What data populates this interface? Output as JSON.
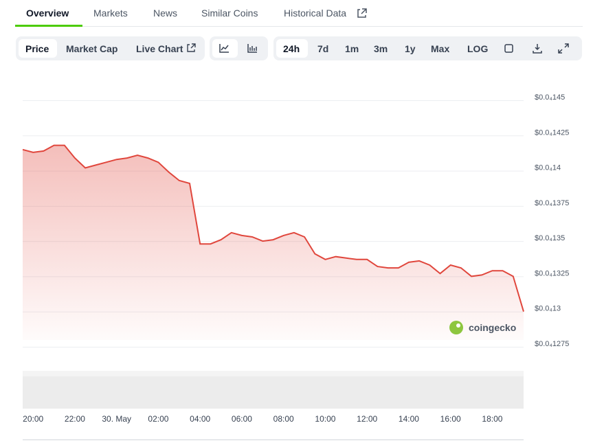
{
  "tabs": [
    "Overview",
    "Markets",
    "News",
    "Similar Coins",
    "Historical Data"
  ],
  "toolbar": {
    "views": [
      "Price",
      "Market Cap",
      "Live Chart"
    ],
    "ranges": [
      "24h",
      "7d",
      "1m",
      "3m",
      "1y",
      "Max",
      "LOG"
    ]
  },
  "watermark": "coingecko",
  "chart_data": {
    "type": "area",
    "color": "#e0463c",
    "categories": [
      null,
      "20:00",
      null,
      null,
      null,
      "22:00",
      null,
      null,
      null,
      "30. May",
      null,
      null,
      null,
      "02:00",
      null,
      null,
      null,
      "04:00",
      null,
      null,
      null,
      "06:00",
      null,
      null,
      null,
      "08:00",
      null,
      null,
      null,
      "10:00",
      null,
      null,
      null,
      "12:00",
      null,
      null,
      null,
      "14:00",
      null,
      null,
      null,
      "16:00",
      null,
      null,
      null,
      "18:00",
      null,
      null,
      null
    ],
    "series": [
      {
        "name": "Price",
        "color": "#e0463c",
        "values": [
          1.415e-05,
          1.413e-05,
          1.414e-05,
          1.418e-05,
          1.418e-05,
          1.409e-05,
          1.402e-05,
          1.404e-05,
          1.406e-05,
          1.408e-05,
          1.409e-05,
          1.411e-05,
          1.409e-05,
          1.406e-05,
          1.399e-05,
          1.393e-05,
          1.391e-05,
          1.348e-05,
          1.348e-05,
          1.351e-05,
          1.356e-05,
          1.354e-05,
          1.353e-05,
          1.35e-05,
          1.351e-05,
          1.354e-05,
          1.356e-05,
          1.353e-05,
          1.341e-05,
          1.337e-05,
          1.339e-05,
          1.338e-05,
          1.337e-05,
          1.337e-05,
          1.332e-05,
          1.331e-05,
          1.331e-05,
          1.335e-05,
          1.336e-05,
          1.333e-05,
          1.327e-05,
          1.333e-05,
          1.331e-05,
          1.325e-05,
          1.326e-05,
          1.329e-05,
          1.329e-05,
          1.325e-05,
          1.3e-05
        ]
      }
    ],
    "ylim": [
      1.275e-05,
      1.45e-05
    ],
    "yticks": [
      {
        "value": 1.275e-05,
        "label": "$0.0₄1275"
      },
      {
        "value": 1.3e-05,
        "label": "$0.0₄13"
      },
      {
        "value": 1.325e-05,
        "label": "$0.0₄1325"
      },
      {
        "value": 1.35e-05,
        "label": "$0.0₄135"
      },
      {
        "value": 1.375e-05,
        "label": "$0.0₄1375"
      },
      {
        "value": 1.4e-05,
        "label": "$0.0₄14"
      },
      {
        "value": 1.425e-05,
        "label": "$0.0₄1425"
      },
      {
        "value": 1.45e-05,
        "label": "$0.0₄145"
      }
    ],
    "grid": true
  }
}
